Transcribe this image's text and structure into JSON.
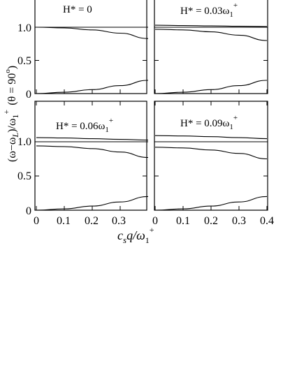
{
  "chart_data": [
    {
      "type": "line",
      "panel_label": "H* = 0",
      "xlim": [
        0,
        0.4
      ],
      "ylim": [
        0,
        1.5
      ],
      "series": [
        {
          "x": [
            0,
            0.1,
            0.2,
            0.3,
            0.4
          ],
          "y": [
            1.0,
            1.0,
            1.0,
            1.0,
            1.0
          ]
        },
        {
          "x": [
            0,
            0.1,
            0.2,
            0.3,
            0.4
          ],
          "y": [
            1.0,
            0.99,
            0.96,
            0.91,
            0.83
          ]
        },
        {
          "x": [
            0,
            0.1,
            0.2,
            0.3,
            0.4
          ],
          "y": [
            0.0,
            0.02,
            0.06,
            0.12,
            0.2
          ]
        }
      ]
    },
    {
      "type": "line",
      "panel_label_main": "H* = 0.03ω",
      "panel_label_sub": "1",
      "panel_label_sup": "+",
      "xlim": [
        0,
        0.4
      ],
      "ylim": [
        0,
        1.5
      ],
      "series": [
        {
          "x": [
            0,
            0.1,
            0.2,
            0.3,
            0.4
          ],
          "y": [
            1.03,
            1.025,
            1.02,
            1.015,
            1.01
          ]
        },
        {
          "x": [
            0,
            0.1,
            0.2,
            0.3,
            0.4
          ],
          "y": [
            1.0,
            1.0,
            1.0,
            1.0,
            1.0
          ]
        },
        {
          "x": [
            0,
            0.1,
            0.2,
            0.3,
            0.4
          ],
          "y": [
            0.97,
            0.96,
            0.93,
            0.88,
            0.8
          ]
        },
        {
          "x": [
            0,
            0.1,
            0.2,
            0.3,
            0.4
          ],
          "y": [
            0.0,
            0.02,
            0.06,
            0.12,
            0.2
          ]
        }
      ]
    },
    {
      "type": "line",
      "panel_label_main": "H* = 0.06ω",
      "panel_label_sub": "1",
      "panel_label_sup": "+",
      "xlim": [
        0,
        0.4
      ],
      "ylim": [
        0,
        1.5
      ],
      "series": [
        {
          "x": [
            0,
            0.1,
            0.2,
            0.3,
            0.4
          ],
          "y": [
            1.06,
            1.055,
            1.045,
            1.035,
            1.025
          ]
        },
        {
          "x": [
            0,
            0.1,
            0.2,
            0.3,
            0.4
          ],
          "y": [
            1.0,
            1.0,
            1.0,
            1.0,
            1.0
          ]
        },
        {
          "x": [
            0,
            0.1,
            0.2,
            0.3,
            0.4
          ],
          "y": [
            0.94,
            0.93,
            0.9,
            0.85,
            0.77
          ]
        },
        {
          "x": [
            0,
            0.1,
            0.2,
            0.3,
            0.4
          ],
          "y": [
            0.0,
            0.02,
            0.06,
            0.12,
            0.2
          ]
        }
      ]
    },
    {
      "type": "line",
      "panel_label_main": "H* = 0.09ω",
      "panel_label_sub": "1",
      "panel_label_sup": "+",
      "xlim": [
        0,
        0.4
      ],
      "ylim": [
        0,
        1.5
      ],
      "series": [
        {
          "x": [
            0,
            0.1,
            0.2,
            0.3,
            0.4
          ],
          "y": [
            1.09,
            1.085,
            1.075,
            1.06,
            1.045
          ]
        },
        {
          "x": [
            0,
            0.1,
            0.2,
            0.3,
            0.4
          ],
          "y": [
            1.0,
            1.0,
            1.0,
            1.0,
            1.0
          ]
        },
        {
          "x": [
            0,
            0.1,
            0.2,
            0.3,
            0.4
          ],
          "y": [
            0.92,
            0.91,
            0.88,
            0.83,
            0.75
          ]
        },
        {
          "x": [
            0,
            0.1,
            0.2,
            0.3,
            0.4
          ],
          "y": [
            0.0,
            0.02,
            0.06,
            0.12,
            0.2
          ]
        }
      ]
    }
  ],
  "yticks": [
    "0",
    "0.5",
    "1.0"
  ],
  "yticks_values": [
    0,
    0.5,
    1.0
  ],
  "xticks_left": [
    "0",
    "0.1",
    "0.2",
    "0.3"
  ],
  "xticks_left_values": [
    0,
    0.1,
    0.2,
    0.3
  ],
  "xticks_right": [
    "0",
    "0.1",
    "0.2",
    "0.3",
    "0.4"
  ],
  "xticks_right_values": [
    0,
    0.1,
    0.2,
    0.3,
    0.4
  ],
  "xlabel": {
    "c": "c",
    "s": "s",
    "q": "q/ω",
    "one": "1",
    "plus": "+"
  },
  "ylabel": {
    "open": "(ω−ω",
    "L": "L",
    "mid": ")/ω",
    "one": "1",
    "plus": "+",
    "theta": "(θ = 90",
    "deg": "o",
    "close": ")"
  }
}
